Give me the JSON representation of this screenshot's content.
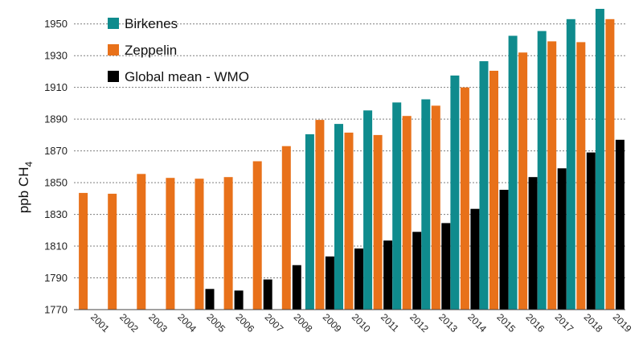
{
  "chart_data": {
    "type": "bar",
    "title": "",
    "xlabel": "",
    "ylabel": "ppb CH",
    "ylabel_subscript": "4",
    "ylim": [
      1770,
      1960
    ],
    "yticks": [
      1770,
      1790,
      1810,
      1830,
      1850,
      1870,
      1890,
      1910,
      1930,
      1950
    ],
    "grid": "horizontal-dotted",
    "legend_position": "top-left",
    "categories": [
      "2001",
      "2002",
      "2003",
      "2004",
      "2005",
      "2006",
      "2007",
      "2008",
      "2009",
      "2010",
      "2011",
      "2012",
      "2013",
      "2014",
      "2015",
      "2016",
      "2017",
      "2018",
      "2019"
    ],
    "series": [
      {
        "name": "Birkenes",
        "color": "#0f8b8d",
        "values": [
          null,
          null,
          null,
          null,
          null,
          null,
          null,
          null,
          1880.5,
          1887,
          1895.5,
          1900.5,
          1902.5,
          1917.5,
          1926.5,
          1942.5,
          1945.5,
          1953,
          1959.5
        ]
      },
      {
        "name": "Zeppelin",
        "color": "#e8711a",
        "values": [
          1843.5,
          1843,
          1855.5,
          1853,
          1852.5,
          1853.5,
          1863.5,
          1873,
          1889.5,
          1881.5,
          1880,
          1892,
          1898.5,
          1910,
          1920.5,
          1932,
          1939,
          1938.5,
          1953
        ]
      },
      {
        "name": "Global mean - WMO",
        "color": "#000000",
        "values": [
          null,
          null,
          null,
          null,
          1783,
          1782,
          1789,
          1798,
          1803.5,
          1808.5,
          1813.5,
          1819,
          1824.5,
          1833.5,
          1845.5,
          1853.5,
          1859,
          1869,
          1877
        ]
      }
    ]
  }
}
